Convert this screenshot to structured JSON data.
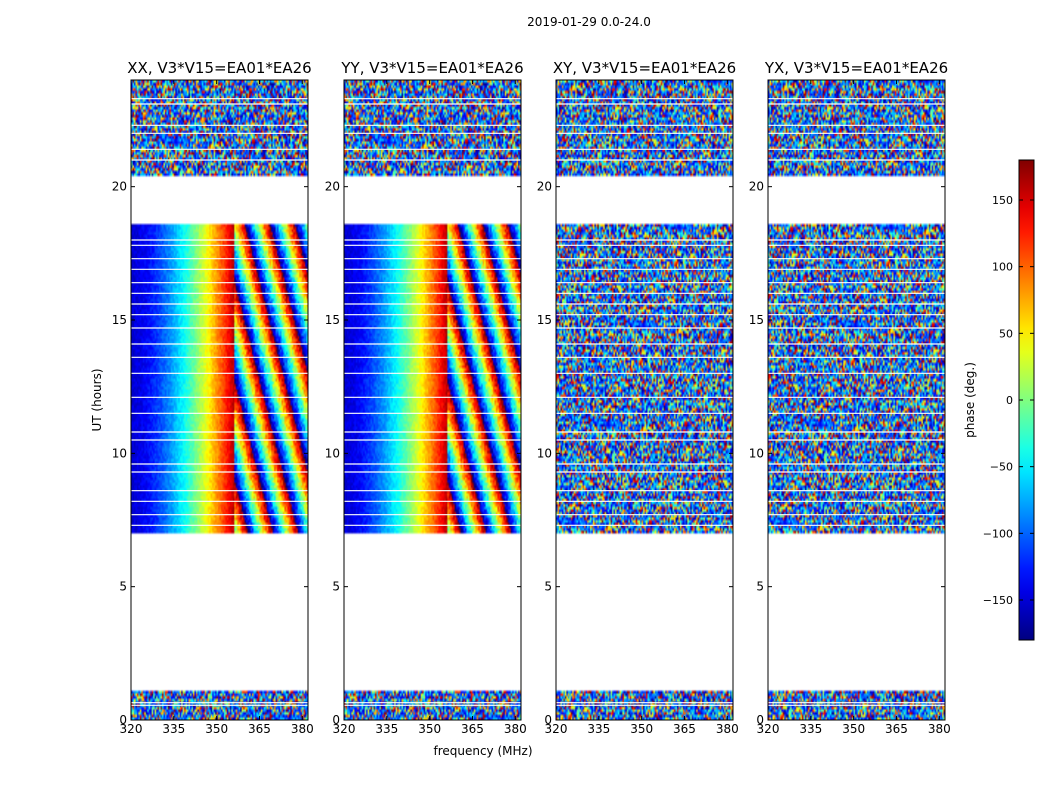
{
  "chart_data": {
    "type": "heatmap",
    "title": "2019-01-29 0.0-24.0",
    "xlabel": "frequency (MHz)",
    "ylabel": "UT (hours)",
    "xlim": [
      320,
      382
    ],
    "ylim": [
      0,
      24
    ],
    "xticks": [
      "320",
      "335",
      "350",
      "365",
      "380"
    ],
    "yticks": [
      "0",
      "5",
      "10",
      "15",
      "20"
    ],
    "panels": [
      {
        "title": "XX, V3*V15=EA01*EA26",
        "pattern": "parallel"
      },
      {
        "title": "YY, V3*V15=EA01*EA26",
        "pattern": "parallel"
      },
      {
        "title": "XY, V3*V15=EA01*EA26",
        "pattern": "cross"
      },
      {
        "title": "YX, V3*V15=EA01*EA26",
        "pattern": "cross"
      }
    ],
    "data_ranges_hours": [
      [
        0.0,
        1.1
      ],
      [
        7.0,
        18.6
      ],
      [
        20.4,
        24.0
      ]
    ],
    "flag_lines_hours": [
      0.55,
      0.65,
      7.3,
      7.7,
      8.2,
      8.6,
      9.3,
      9.6,
      10.5,
      10.8,
      11.5,
      12.1,
      13.0,
      13.6,
      14.1,
      14.7,
      15.2,
      15.6,
      16.0,
      16.4,
      16.9,
      17.3,
      17.8,
      18.0,
      21.0,
      21.4,
      22.0,
      22.3,
      23.1,
      23.3
    ],
    "phase_ramp": {
      "wrap_start_mhz": 356,
      "turn_mhz": 344,
      "min_deg": -150,
      "max_deg": 160
    },
    "colorbar": {
      "label": "phase (deg.)",
      "range": [
        -180,
        180
      ],
      "ticks": [
        -150,
        -100,
        -50,
        0,
        50,
        100,
        150
      ],
      "tick_labels": [
        "−150",
        "−100",
        "−50",
        "0",
        "50",
        "100",
        "150"
      ],
      "colormap": "jet"
    }
  }
}
